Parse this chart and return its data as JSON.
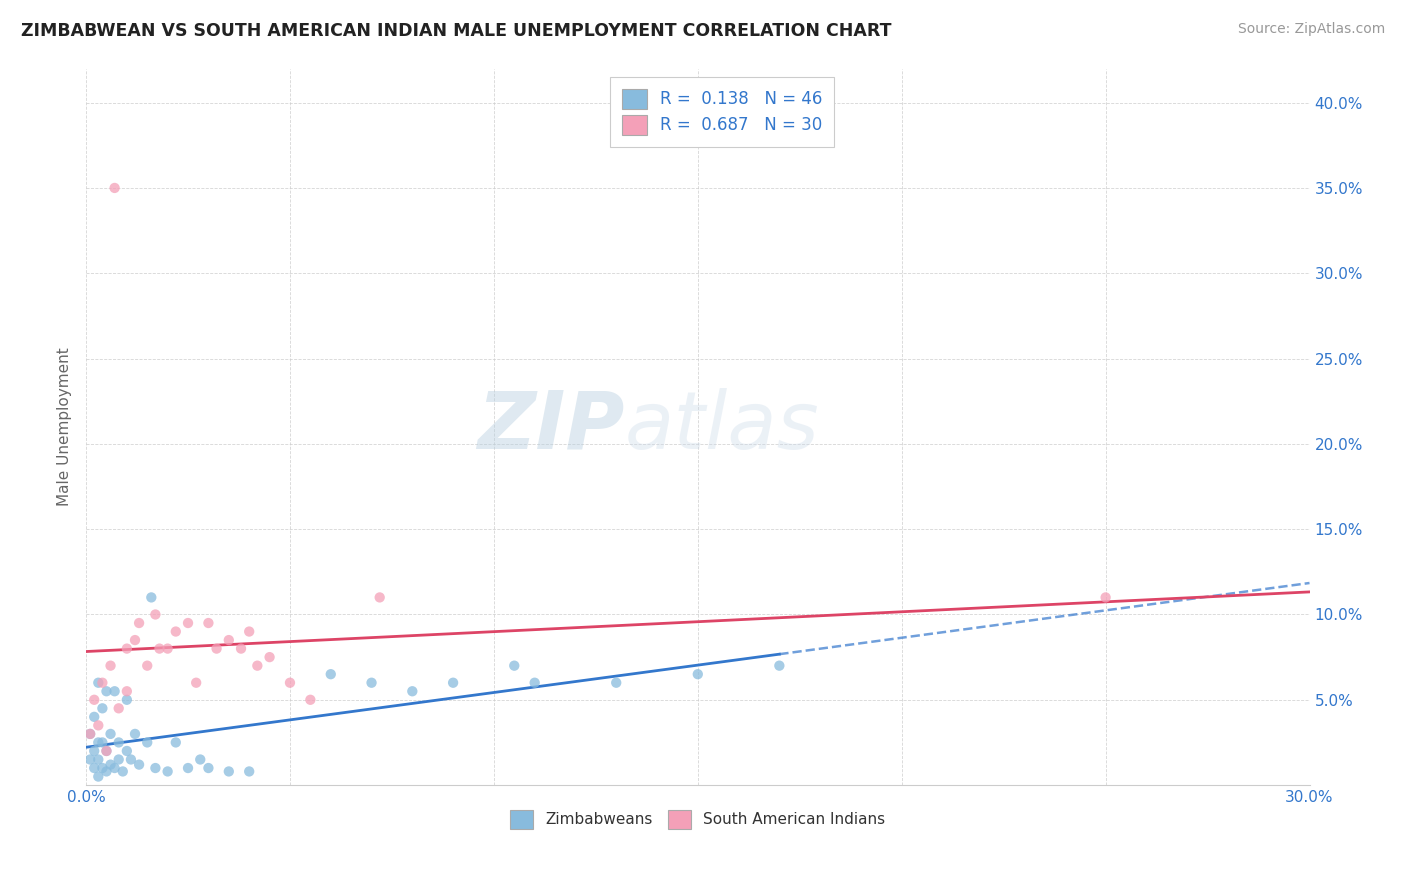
{
  "title": "ZIMBABWEAN VS SOUTH AMERICAN INDIAN MALE UNEMPLOYMENT CORRELATION CHART",
  "source": "Source: ZipAtlas.com",
  "ylabel": "Male Unemployment",
  "xlim": [
    0.0,
    0.3
  ],
  "ylim": [
    0.0,
    0.42
  ],
  "xtick_vals": [
    0.0,
    0.05,
    0.1,
    0.15,
    0.2,
    0.25,
    0.3
  ],
  "xtick_labels": [
    "0.0%",
    "",
    "",
    "",
    "",
    "",
    "30.0%"
  ],
  "ytick_vals": [
    0.0,
    0.05,
    0.1,
    0.15,
    0.2,
    0.25,
    0.3,
    0.35,
    0.4
  ],
  "ytick_labels": [
    "",
    "5.0%",
    "10.0%",
    "15.0%",
    "20.0%",
    "25.0%",
    "30.0%",
    "35.0%",
    "40.0%"
  ],
  "blue_color": "#88bbdd",
  "pink_color": "#f4a0b8",
  "blue_line_color": "#3377cc",
  "pink_line_color": "#dd4466",
  "r_blue": 0.138,
  "n_blue": 46,
  "r_pink": 0.687,
  "n_pink": 30,
  "watermark": "ZIPatlas",
  "blue_x": [
    0.001,
    0.001,
    0.002,
    0.002,
    0.002,
    0.003,
    0.003,
    0.003,
    0.003,
    0.004,
    0.004,
    0.004,
    0.005,
    0.005,
    0.005,
    0.006,
    0.006,
    0.007,
    0.007,
    0.008,
    0.008,
    0.009,
    0.01,
    0.01,
    0.011,
    0.012,
    0.013,
    0.015,
    0.016,
    0.017,
    0.02,
    0.022,
    0.025,
    0.028,
    0.03,
    0.035,
    0.04,
    0.06,
    0.07,
    0.08,
    0.09,
    0.105,
    0.11,
    0.13,
    0.15,
    0.17
  ],
  "blue_y": [
    0.015,
    0.03,
    0.01,
    0.02,
    0.04,
    0.005,
    0.015,
    0.025,
    0.06,
    0.01,
    0.025,
    0.045,
    0.008,
    0.02,
    0.055,
    0.012,
    0.03,
    0.01,
    0.055,
    0.015,
    0.025,
    0.008,
    0.02,
    0.05,
    0.015,
    0.03,
    0.012,
    0.025,
    0.11,
    0.01,
    0.008,
    0.025,
    0.01,
    0.015,
    0.01,
    0.008,
    0.008,
    0.065,
    0.06,
    0.055,
    0.06,
    0.07,
    0.06,
    0.06,
    0.065,
    0.07
  ],
  "pink_x": [
    0.001,
    0.002,
    0.003,
    0.004,
    0.005,
    0.006,
    0.007,
    0.008,
    0.01,
    0.01,
    0.012,
    0.013,
    0.015,
    0.017,
    0.018,
    0.02,
    0.022,
    0.025,
    0.027,
    0.03,
    0.032,
    0.035,
    0.038,
    0.04,
    0.042,
    0.045,
    0.05,
    0.055,
    0.25,
    0.072
  ],
  "pink_y": [
    0.03,
    0.05,
    0.035,
    0.06,
    0.02,
    0.07,
    0.35,
    0.045,
    0.08,
    0.055,
    0.085,
    0.095,
    0.07,
    0.1,
    0.08,
    0.08,
    0.09,
    0.095,
    0.06,
    0.095,
    0.08,
    0.085,
    0.08,
    0.09,
    0.07,
    0.075,
    0.06,
    0.05,
    0.11,
    0.11
  ],
  "background_color": "#ffffff",
  "grid_color": "#cccccc",
  "legend_blue_label": "R =  0.138   N = 46",
  "legend_pink_label": "R =  0.687   N = 30",
  "bottom_legend_blue": "Zimbabweans",
  "bottom_legend_pink": "South American Indians"
}
